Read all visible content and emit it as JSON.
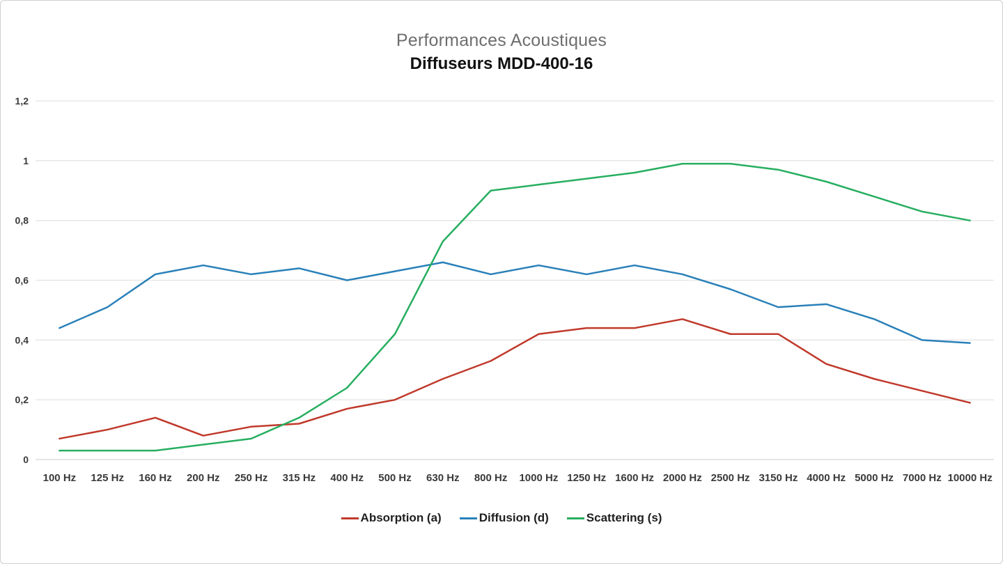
{
  "header": {
    "title": "Performances Acoustiques",
    "subtitle": "Diffuseurs MDD-400-16"
  },
  "chart_data": {
    "type": "line",
    "title": "Performances Acoustiques",
    "subtitle": "Diffuseurs MDD-400-16",
    "xlabel": "",
    "ylabel": "",
    "grid": true,
    "legend_position": "bottom",
    "ylim": [
      0,
      1.2
    ],
    "ytick_step": 0.2,
    "ytick_labels": [
      "0",
      "0,2",
      "0,4",
      "0,6",
      "0,8",
      "1",
      "1,2"
    ],
    "categories": [
      "100 Hz",
      "125 Hz",
      "160 Hz",
      "200 Hz",
      "250 Hz",
      "315 Hz",
      "400 Hz",
      "500 Hz",
      "630 Hz",
      "800 Hz",
      "1000 Hz",
      "1250 Hz",
      "1600 Hz",
      "2000 Hz",
      "2500 Hz",
      "3150 Hz",
      "4000 Hz",
      "5000 Hz",
      "7000 Hz",
      "10000 Hz"
    ],
    "series": [
      {
        "name": "Absorption (a)",
        "color": "#c0392b",
        "values": [
          0.07,
          0.1,
          0.14,
          0.08,
          0.11,
          0.12,
          0.17,
          0.2,
          0.27,
          0.33,
          0.42,
          0.44,
          0.44,
          0.47,
          0.42,
          0.42,
          0.32,
          0.27,
          0.23,
          0.19
        ]
      },
      {
        "name": "Diffusion (d)",
        "color": "#2980b9",
        "values": [
          0.44,
          0.51,
          0.62,
          0.65,
          0.62,
          0.64,
          0.6,
          0.63,
          0.66,
          0.62,
          0.65,
          0.62,
          0.65,
          0.62,
          0.57,
          0.51,
          0.52,
          0.47,
          0.4,
          0.39
        ]
      },
      {
        "name": "Scattering (s)",
        "color": "#27ae60",
        "values": [
          0.03,
          0.03,
          0.03,
          0.05,
          0.07,
          0.14,
          0.24,
          0.42,
          0.73,
          0.9,
          0.92,
          0.94,
          0.96,
          0.99,
          0.99,
          0.97,
          0.93,
          0.88,
          0.83,
          0.8
        ]
      }
    ],
    "colors": {
      "grid": "#e4e4e4",
      "baseline": "#d8d8d8",
      "tick_text": "#3a3a3a"
    }
  }
}
